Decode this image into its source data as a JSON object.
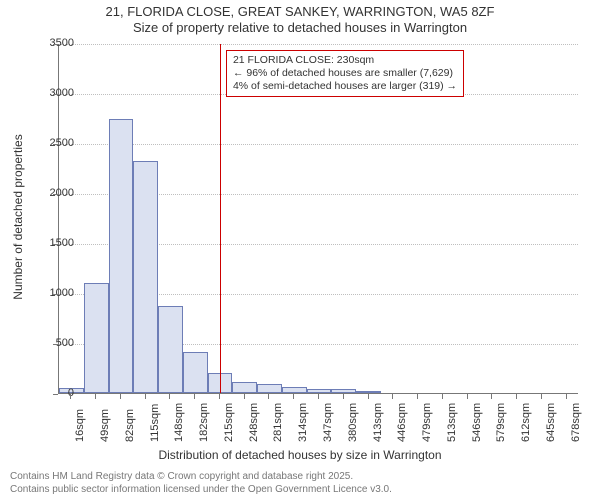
{
  "title": {
    "line1": "21, FLORIDA CLOSE, GREAT SANKEY, WARRINGTON, WA5 8ZF",
    "line2": "Size of property relative to detached houses in Warrington"
  },
  "chart": {
    "type": "histogram",
    "xlabel": "Distribution of detached houses by size in Warrington",
    "ylabel": "Number of detached properties",
    "background_color": "#ffffff",
    "grid_color": "#bfbfbf",
    "axis_color": "#777777",
    "bar_fill": "#dbe1f1",
    "bar_border": "#6d7db6",
    "label_fontsize": 12,
    "tick_fontsize": 11,
    "ymin": 0,
    "ymax": 3500,
    "ytick_step": 500,
    "xticks": [
      "16sqm",
      "49sqm",
      "82sqm",
      "115sqm",
      "148sqm",
      "182sqm",
      "215sqm",
      "248sqm",
      "281sqm",
      "314sqm",
      "347sqm",
      "380sqm",
      "413sqm",
      "446sqm",
      "479sqm",
      "513sqm",
      "546sqm",
      "579sqm",
      "612sqm",
      "645sqm",
      "678sqm"
    ],
    "values": [
      50,
      1100,
      2740,
      2320,
      870,
      410,
      200,
      110,
      90,
      60,
      40,
      40,
      20,
      0,
      0,
      0,
      0,
      0,
      0,
      0,
      0
    ],
    "marker": {
      "color": "#cc0000",
      "position_bin_right_edge": 6.5
    },
    "annotation": {
      "line1": "21 FLORIDA CLOSE: 230sqm",
      "line2": "← 96% of detached houses are smaller (7,629)",
      "line3": "4% of semi-detached houses are larger (319) →",
      "border_color": "#cc0000",
      "background": "#ffffff"
    }
  },
  "footer": {
    "line1": "Contains HM Land Registry data © Crown copyright and database right 2025.",
    "line2": "Contains public sector information licensed under the Open Government Licence v3.0."
  }
}
